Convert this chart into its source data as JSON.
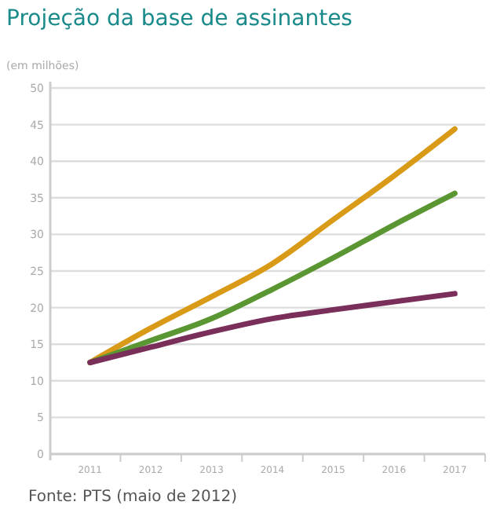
{
  "chart_data": {
    "type": "line",
    "title": "Projeção da base de assinantes",
    "ylabel": "(em milhões)",
    "categories": [
      "2011",
      "2012",
      "2013",
      "2014",
      "2015",
      "2016",
      "2017"
    ],
    "series": [
      {
        "color": "#d99a17",
        "values": [
          12.5,
          17.2,
          21.5,
          26.0,
          32.0,
          38.0,
          44.4
        ]
      },
      {
        "color": "#5a9632",
        "values": [
          12.5,
          15.5,
          18.5,
          22.5,
          26.8,
          31.3,
          35.6
        ]
      },
      {
        "color": "#7a2e5a",
        "values": [
          12.5,
          14.6,
          16.7,
          18.5,
          19.7,
          20.8,
          21.9
        ]
      }
    ],
    "ylim": [
      0,
      50
    ],
    "yticks": [
      0,
      5,
      10,
      15,
      20,
      25,
      30,
      35,
      40,
      45,
      50
    ],
    "grid": "y",
    "annotations": [
      "Fonte: PTS (maio de 2012)"
    ]
  }
}
